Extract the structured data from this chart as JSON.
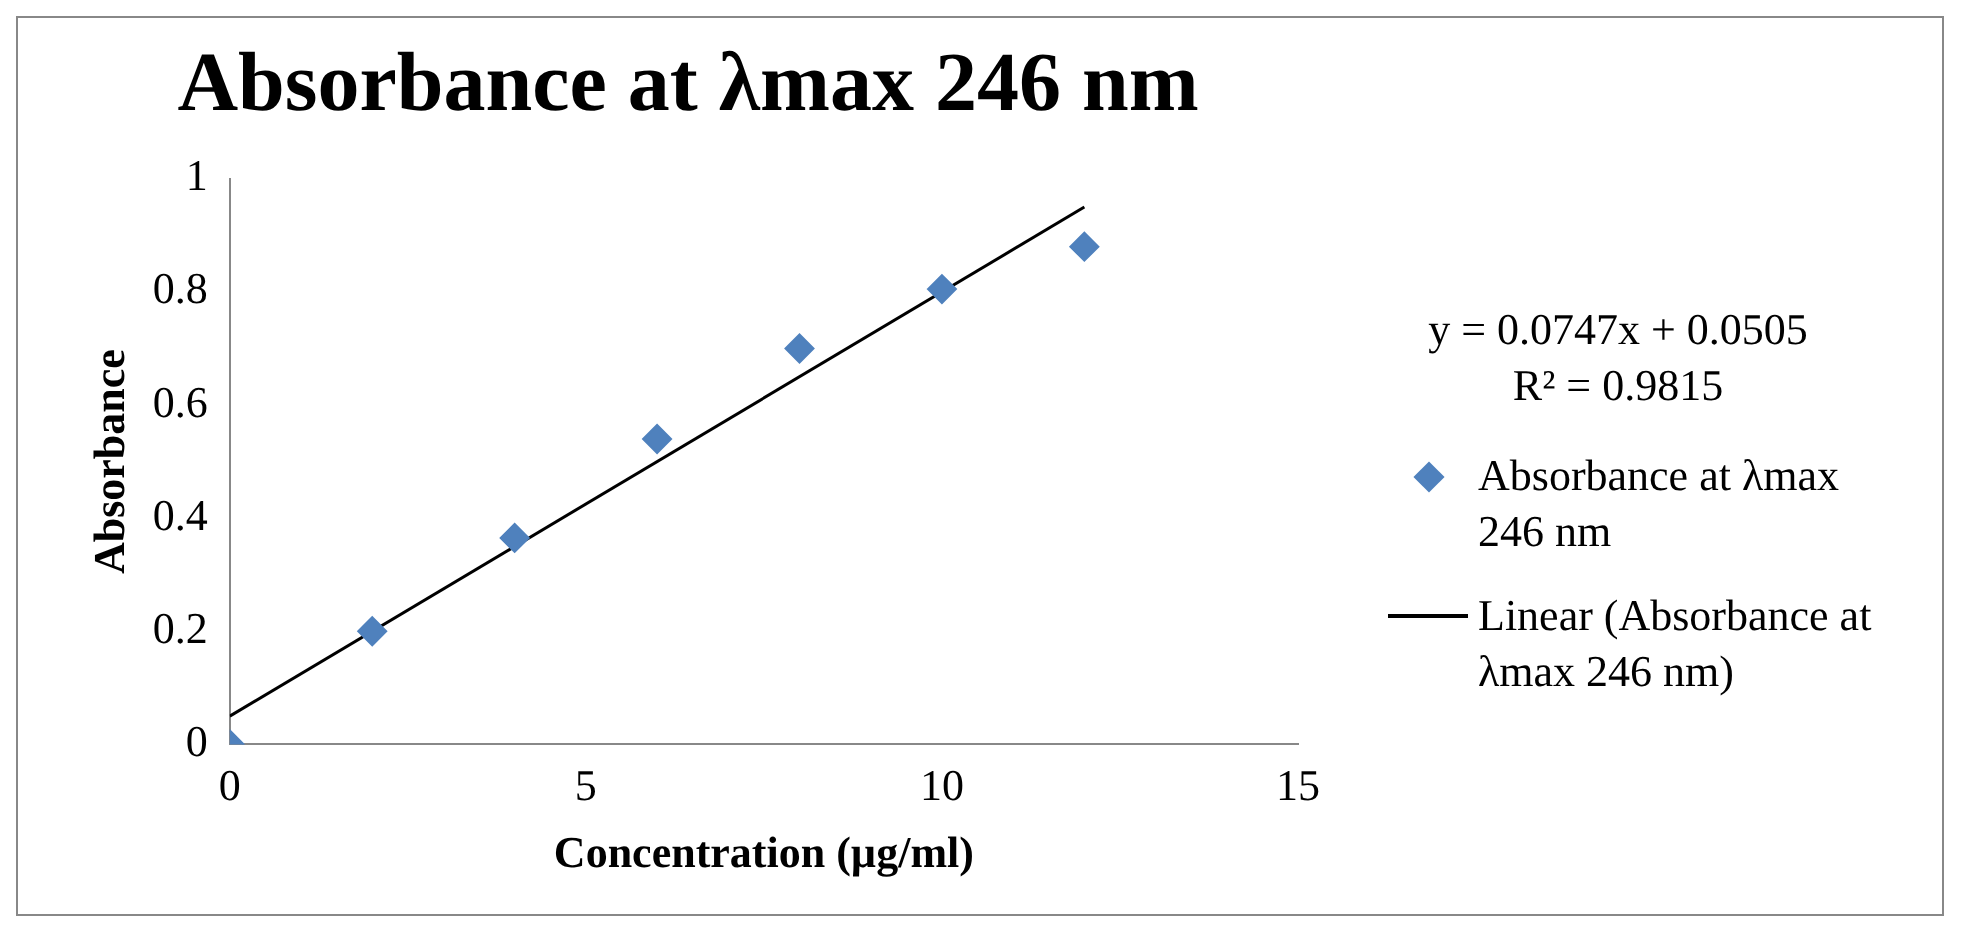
{
  "chart_data": {
    "type": "scatter",
    "title": "Absorbance at λmax 246 nm",
    "xlabel": "Concentration (µg/ml)",
    "ylabel": "Absorbance",
    "annotations": [
      "y = 0.0747x + 0.0505",
      "R² = 0.9815"
    ],
    "xlim": [
      0,
      15
    ],
    "xticks": [
      0,
      5,
      10,
      15
    ],
    "ylim": [
      0,
      1
    ],
    "yticks": [
      0,
      0.2,
      0.4,
      0.6,
      0.8,
      1
    ],
    "legend": "right",
    "series": [
      {
        "name": "Absorbance at λmax 246 nm",
        "type": "scatter",
        "color": "#4f81bd",
        "marker": "diamond",
        "x": [
          0,
          2,
          4,
          6,
          8,
          10,
          12
        ],
        "values": [
          0,
          0.2,
          0.365,
          0.54,
          0.7,
          0.805,
          0.88
        ]
      },
      {
        "name": "Linear (Absorbance at λmax 246 nm)",
        "type": "line",
        "color": "#000000",
        "marker": "none",
        "x": [
          0,
          12
        ],
        "values": [
          0.05,
          0.95
        ]
      }
    ]
  }
}
